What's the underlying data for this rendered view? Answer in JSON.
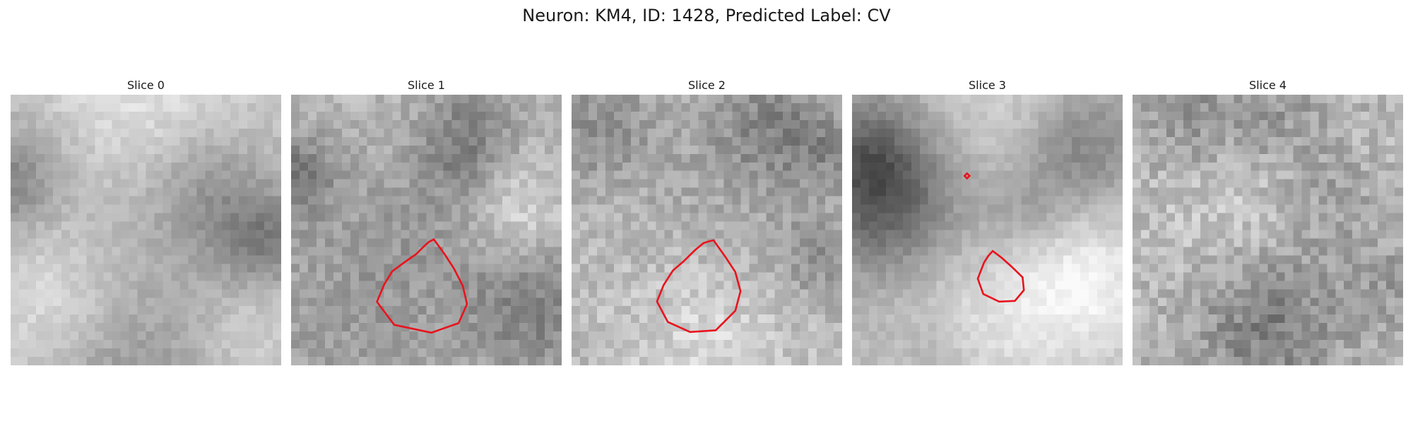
{
  "figure": {
    "title": "Neuron: KM4, ID: 1428, Predicted Label: CV"
  },
  "colors": {
    "contour": "#e8141e",
    "background": "#ffffff"
  },
  "slices": [
    {
      "title": "Slice 0"
    },
    {
      "title": "Slice 1"
    },
    {
      "title": "Slice 2"
    },
    {
      "title": "Slice 3"
    },
    {
      "title": "Slice 4"
    }
  ]
}
